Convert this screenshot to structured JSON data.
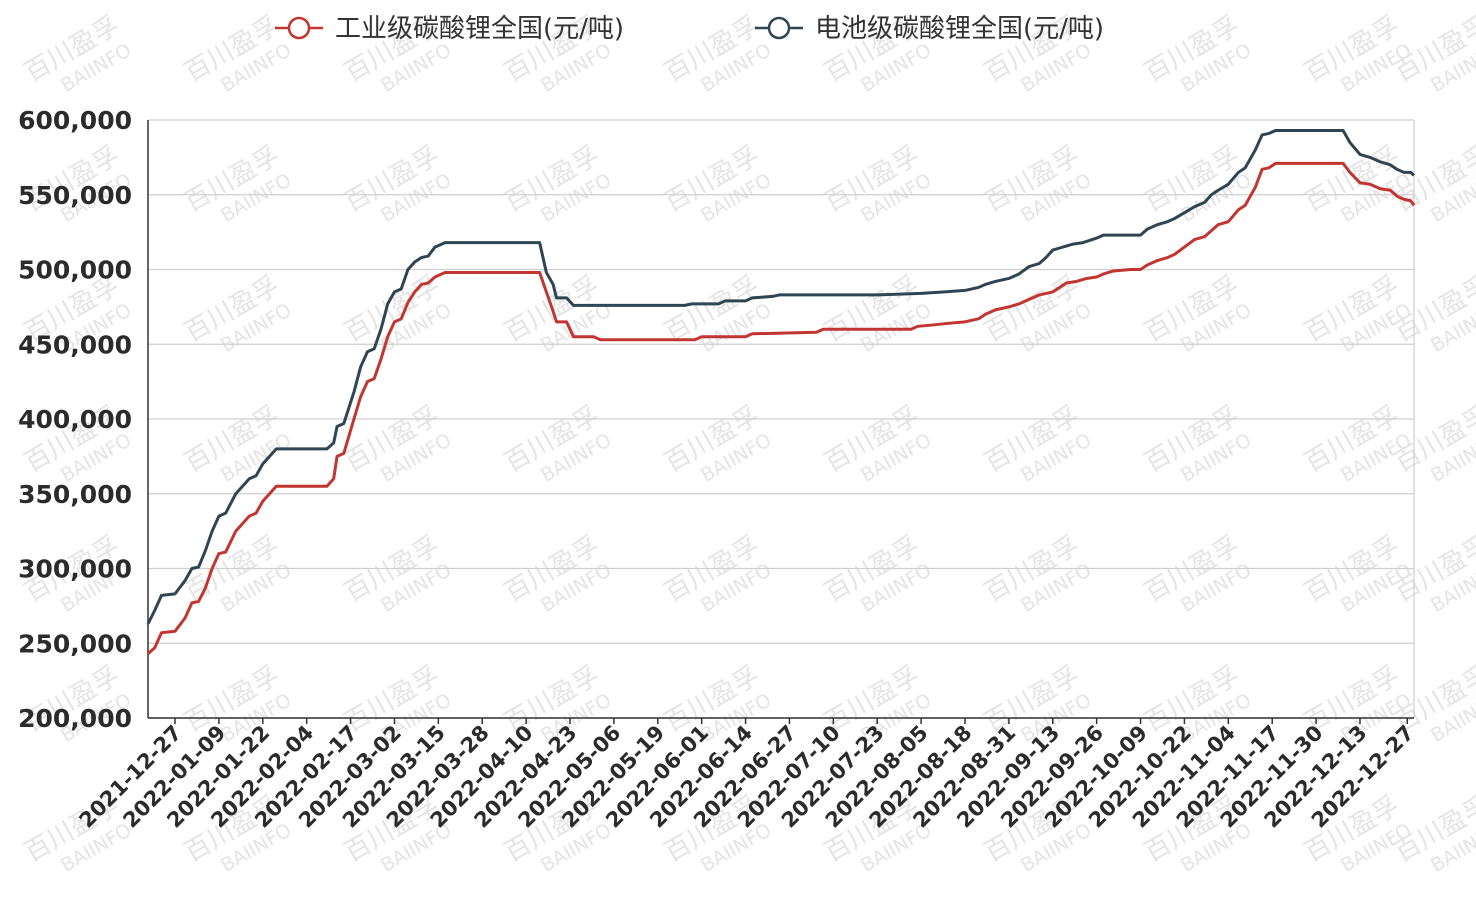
{
  "chart_data": {
    "type": "line",
    "title": "",
    "xlabel": "",
    "ylabel": "",
    "ylim": [
      200000,
      600000
    ],
    "yticks": [
      "200,000",
      "250,000",
      "300,000",
      "350,000",
      "400,000",
      "450,000",
      "500,000",
      "550,000",
      "600,000"
    ],
    "x_ticks": [
      "2021-12-27",
      "2022-01-09",
      "2022-01-22",
      "2022-02-04",
      "2022-02-17",
      "2022-03-02",
      "2022-03-15",
      "2022-03-28",
      "2022-04-10",
      "2022-04-23",
      "2022-05-06",
      "2022-05-19",
      "2022-06-01",
      "2022-06-14",
      "2022-06-27",
      "2022-07-10",
      "2022-07-23",
      "2022-08-05",
      "2022-08-18",
      "2022-08-31",
      "2022-09-13",
      "2022-09-26",
      "2022-10-09",
      "2022-10-22",
      "2022-11-04",
      "2022-11-17",
      "2022-11-30",
      "2022-12-13",
      "2022-12-27"
    ],
    "x_range": [
      "2021-12-19",
      "2022-12-29"
    ],
    "grid": true,
    "legend_position": "top-center",
    "series": [
      {
        "name": "工业级碳酸锂全国(元/吨)",
        "color": "#c23531",
        "points": [
          [
            "2021-12-19",
            243000
          ],
          [
            "2021-12-21",
            247000
          ],
          [
            "2021-12-23",
            257000
          ],
          [
            "2021-12-27",
            258000
          ],
          [
            "2021-12-30",
            267000
          ],
          [
            "2022-01-01",
            277000
          ],
          [
            "2022-01-03",
            278000
          ],
          [
            "2022-01-05",
            287000
          ],
          [
            "2022-01-07",
            300000
          ],
          [
            "2022-01-09",
            310000
          ],
          [
            "2022-01-11",
            311000
          ],
          [
            "2022-01-14",
            325000
          ],
          [
            "2022-01-18",
            335000
          ],
          [
            "2022-01-20",
            337000
          ],
          [
            "2022-01-22",
            345000
          ],
          [
            "2022-01-26",
            355000
          ],
          [
            "2022-02-02",
            355000
          ],
          [
            "2022-02-10",
            355000
          ],
          [
            "2022-02-12",
            360000
          ],
          [
            "2022-02-13",
            375000
          ],
          [
            "2022-02-15",
            377000
          ],
          [
            "2022-02-18",
            400000
          ],
          [
            "2022-02-20",
            415000
          ],
          [
            "2022-02-22",
            425000
          ],
          [
            "2022-02-24",
            427000
          ],
          [
            "2022-02-26",
            440000
          ],
          [
            "2022-02-28",
            455000
          ],
          [
            "2022-03-02",
            465000
          ],
          [
            "2022-03-04",
            467000
          ],
          [
            "2022-03-06",
            478000
          ],
          [
            "2022-03-08",
            485000
          ],
          [
            "2022-03-10",
            490000
          ],
          [
            "2022-03-12",
            491000
          ],
          [
            "2022-03-14",
            495000
          ],
          [
            "2022-03-17",
            498000
          ],
          [
            "2022-03-28",
            498000
          ],
          [
            "2022-04-09",
            498000
          ],
          [
            "2022-04-14",
            498000
          ],
          [
            "2022-04-16",
            485000
          ],
          [
            "2022-04-18",
            472000
          ],
          [
            "2022-04-19",
            465000
          ],
          [
            "2022-04-22",
            465000
          ],
          [
            "2022-04-24",
            455000
          ],
          [
            "2022-04-30",
            455000
          ],
          [
            "2022-05-02",
            453000
          ],
          [
            "2022-05-19",
            453000
          ],
          [
            "2022-05-30",
            453000
          ],
          [
            "2022-06-01",
            455000
          ],
          [
            "2022-06-14",
            455000
          ],
          [
            "2022-06-16",
            457000
          ],
          [
            "2022-07-05",
            458000
          ],
          [
            "2022-07-07",
            460000
          ],
          [
            "2022-07-23",
            460000
          ],
          [
            "2022-08-02",
            460000
          ],
          [
            "2022-08-04",
            462000
          ],
          [
            "2022-08-09",
            463000
          ],
          [
            "2022-08-13",
            464000
          ],
          [
            "2022-08-18",
            465000
          ],
          [
            "2022-08-22",
            467000
          ],
          [
            "2022-08-24",
            470000
          ],
          [
            "2022-08-27",
            473000
          ],
          [
            "2022-08-31",
            475000
          ],
          [
            "2022-09-03",
            477000
          ],
          [
            "2022-09-06",
            480000
          ],
          [
            "2022-09-09",
            483000
          ],
          [
            "2022-09-13",
            485000
          ],
          [
            "2022-09-15",
            488000
          ],
          [
            "2022-09-17",
            491000
          ],
          [
            "2022-09-20",
            492000
          ],
          [
            "2022-09-23",
            494000
          ],
          [
            "2022-09-26",
            495000
          ],
          [
            "2022-09-28",
            497000
          ],
          [
            "2022-10-01",
            499000
          ],
          [
            "2022-10-06",
            500000
          ],
          [
            "2022-10-09",
            500000
          ],
          [
            "2022-10-11",
            503000
          ],
          [
            "2022-10-14",
            506000
          ],
          [
            "2022-10-17",
            508000
          ],
          [
            "2022-10-19",
            510000
          ],
          [
            "2022-10-22",
            515000
          ],
          [
            "2022-10-25",
            520000
          ],
          [
            "2022-10-28",
            522000
          ],
          [
            "2022-10-30",
            526000
          ],
          [
            "2022-11-01",
            530000
          ],
          [
            "2022-11-04",
            532000
          ],
          [
            "2022-11-07",
            540000
          ],
          [
            "2022-11-09",
            543000
          ],
          [
            "2022-11-12",
            555000
          ],
          [
            "2022-11-14",
            567000
          ],
          [
            "2022-11-16",
            568000
          ],
          [
            "2022-11-18",
            571000
          ],
          [
            "2022-11-30",
            571000
          ],
          [
            "2022-12-08",
            571000
          ],
          [
            "2022-12-10",
            565000
          ],
          [
            "2022-12-13",
            558000
          ],
          [
            "2022-12-16",
            557000
          ],
          [
            "2022-12-19",
            554000
          ],
          [
            "2022-12-22",
            553000
          ],
          [
            "2022-12-24",
            549000
          ],
          [
            "2022-12-26",
            547000
          ],
          [
            "2022-12-28",
            546000
          ],
          [
            "2022-12-29",
            543000
          ]
        ]
      },
      {
        "name": "电池级碳酸锂全国(元/吨)",
        "color": "#2f4554",
        "points": [
          [
            "2021-12-19",
            263000
          ],
          [
            "2021-12-21",
            272000
          ],
          [
            "2021-12-23",
            282000
          ],
          [
            "2021-12-27",
            283000
          ],
          [
            "2021-12-30",
            292000
          ],
          [
            "2022-01-01",
            300000
          ],
          [
            "2022-01-03",
            301000
          ],
          [
            "2022-01-05",
            312000
          ],
          [
            "2022-01-07",
            325000
          ],
          [
            "2022-01-09",
            335000
          ],
          [
            "2022-01-11",
            337000
          ],
          [
            "2022-01-14",
            350000
          ],
          [
            "2022-01-18",
            360000
          ],
          [
            "2022-01-20",
            362000
          ],
          [
            "2022-01-22",
            370000
          ],
          [
            "2022-01-26",
            380000
          ],
          [
            "2022-02-02",
            380000
          ],
          [
            "2022-02-10",
            380000
          ],
          [
            "2022-02-12",
            384000
          ],
          [
            "2022-02-13",
            395000
          ],
          [
            "2022-02-15",
            397000
          ],
          [
            "2022-02-18",
            418000
          ],
          [
            "2022-02-20",
            435000
          ],
          [
            "2022-02-22",
            445000
          ],
          [
            "2022-02-24",
            447000
          ],
          [
            "2022-02-26",
            460000
          ],
          [
            "2022-02-28",
            477000
          ],
          [
            "2022-03-02",
            485000
          ],
          [
            "2022-03-04",
            487000
          ],
          [
            "2022-03-06",
            500000
          ],
          [
            "2022-03-08",
            505000
          ],
          [
            "2022-03-10",
            508000
          ],
          [
            "2022-03-12",
            509000
          ],
          [
            "2022-03-14",
            515000
          ],
          [
            "2022-03-17",
            518000
          ],
          [
            "2022-03-28",
            518000
          ],
          [
            "2022-04-09",
            518000
          ],
          [
            "2022-04-14",
            518000
          ],
          [
            "2022-04-16",
            498000
          ],
          [
            "2022-04-18",
            490000
          ],
          [
            "2022-04-19",
            481000
          ],
          [
            "2022-04-22",
            481000
          ],
          [
            "2022-04-24",
            476000
          ],
          [
            "2022-05-06",
            476000
          ],
          [
            "2022-05-19",
            476000
          ],
          [
            "2022-05-27",
            476000
          ],
          [
            "2022-05-29",
            477000
          ],
          [
            "2022-06-06",
            477000
          ],
          [
            "2022-06-08",
            479000
          ],
          [
            "2022-06-14",
            479000
          ],
          [
            "2022-06-16",
            481000
          ],
          [
            "2022-06-22",
            482000
          ],
          [
            "2022-06-24",
            483000
          ],
          [
            "2022-07-10",
            483000
          ],
          [
            "2022-07-23",
            483000
          ],
          [
            "2022-08-05",
            484000
          ],
          [
            "2022-08-12",
            485000
          ],
          [
            "2022-08-18",
            486000
          ],
          [
            "2022-08-22",
            488000
          ],
          [
            "2022-08-24",
            490000
          ],
          [
            "2022-08-27",
            492000
          ],
          [
            "2022-08-31",
            494000
          ],
          [
            "2022-09-03",
            497000
          ],
          [
            "2022-09-06",
            502000
          ],
          [
            "2022-09-09",
            504000
          ],
          [
            "2022-09-11",
            508000
          ],
          [
            "2022-09-13",
            513000
          ],
          [
            "2022-09-16",
            515000
          ],
          [
            "2022-09-19",
            517000
          ],
          [
            "2022-09-22",
            518000
          ],
          [
            "2022-09-26",
            521000
          ],
          [
            "2022-09-28",
            523000
          ],
          [
            "2022-10-04",
            523000
          ],
          [
            "2022-10-09",
            523000
          ],
          [
            "2022-10-11",
            527000
          ],
          [
            "2022-10-14",
            530000
          ],
          [
            "2022-10-17",
            532000
          ],
          [
            "2022-10-19",
            534000
          ],
          [
            "2022-10-22",
            538000
          ],
          [
            "2022-10-25",
            542000
          ],
          [
            "2022-10-28",
            545000
          ],
          [
            "2022-10-30",
            550000
          ],
          [
            "2022-11-01",
            553000
          ],
          [
            "2022-11-04",
            557000
          ],
          [
            "2022-11-07",
            565000
          ],
          [
            "2022-11-09",
            568000
          ],
          [
            "2022-11-12",
            580000
          ],
          [
            "2022-11-14",
            590000
          ],
          [
            "2022-11-16",
            591000
          ],
          [
            "2022-11-18",
            593000
          ],
          [
            "2022-11-30",
            593000
          ],
          [
            "2022-12-08",
            593000
          ],
          [
            "2022-12-10",
            585000
          ],
          [
            "2022-12-13",
            577000
          ],
          [
            "2022-12-16",
            575000
          ],
          [
            "2022-12-19",
            572000
          ],
          [
            "2022-12-22",
            570000
          ],
          [
            "2022-12-24",
            567000
          ],
          [
            "2022-12-26",
            565000
          ],
          [
            "2022-12-28",
            565000
          ],
          [
            "2022-12-29",
            563000
          ]
        ]
      }
    ],
    "watermark": {
      "line1": "百川盈孚",
      "line2": "BAIINFO"
    }
  }
}
